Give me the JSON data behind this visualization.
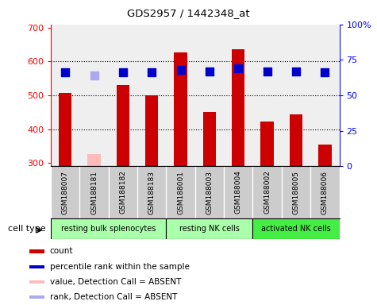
{
  "title": "GDS2957 / 1442348_at",
  "samples": [
    "GSM188007",
    "GSM188181",
    "GSM188182",
    "GSM188183",
    "GSM188001",
    "GSM188003",
    "GSM188004",
    "GSM188002",
    "GSM188005",
    "GSM188006"
  ],
  "counts": [
    507,
    null,
    530,
    500,
    628,
    450,
    636,
    422,
    443,
    354
  ],
  "counts_absent": [
    null,
    327,
    null,
    null,
    null,
    null,
    null,
    null,
    null,
    null
  ],
  "percentile_ranks": [
    66,
    null,
    66,
    66,
    68,
    67,
    69,
    67,
    67,
    66
  ],
  "percentile_ranks_absent": [
    null,
    64,
    null,
    null,
    null,
    null,
    null,
    null,
    null,
    null
  ],
  "cell_types": [
    {
      "label": "resting bulk splenocytes",
      "start": 0,
      "end": 4,
      "color": "#aaffaa"
    },
    {
      "label": "resting NK cells",
      "start": 4,
      "end": 7,
      "color": "#aaffaa"
    },
    {
      "label": "activated NK cells",
      "start": 7,
      "end": 10,
      "color": "#44ee44"
    }
  ],
  "ylim_left": [
    290,
    710
  ],
  "ylim_right": [
    0,
    100
  ],
  "bar_width": 0.45,
  "bar_color_present": "#cc0000",
  "bar_color_absent": "#ffbbbb",
  "dot_color_present": "#0000cc",
  "dot_color_absent": "#aaaaee",
  "bg_color_sample": "#cccccc",
  "grid_color": "#000000",
  "baseline": 290,
  "dot_size": 45
}
